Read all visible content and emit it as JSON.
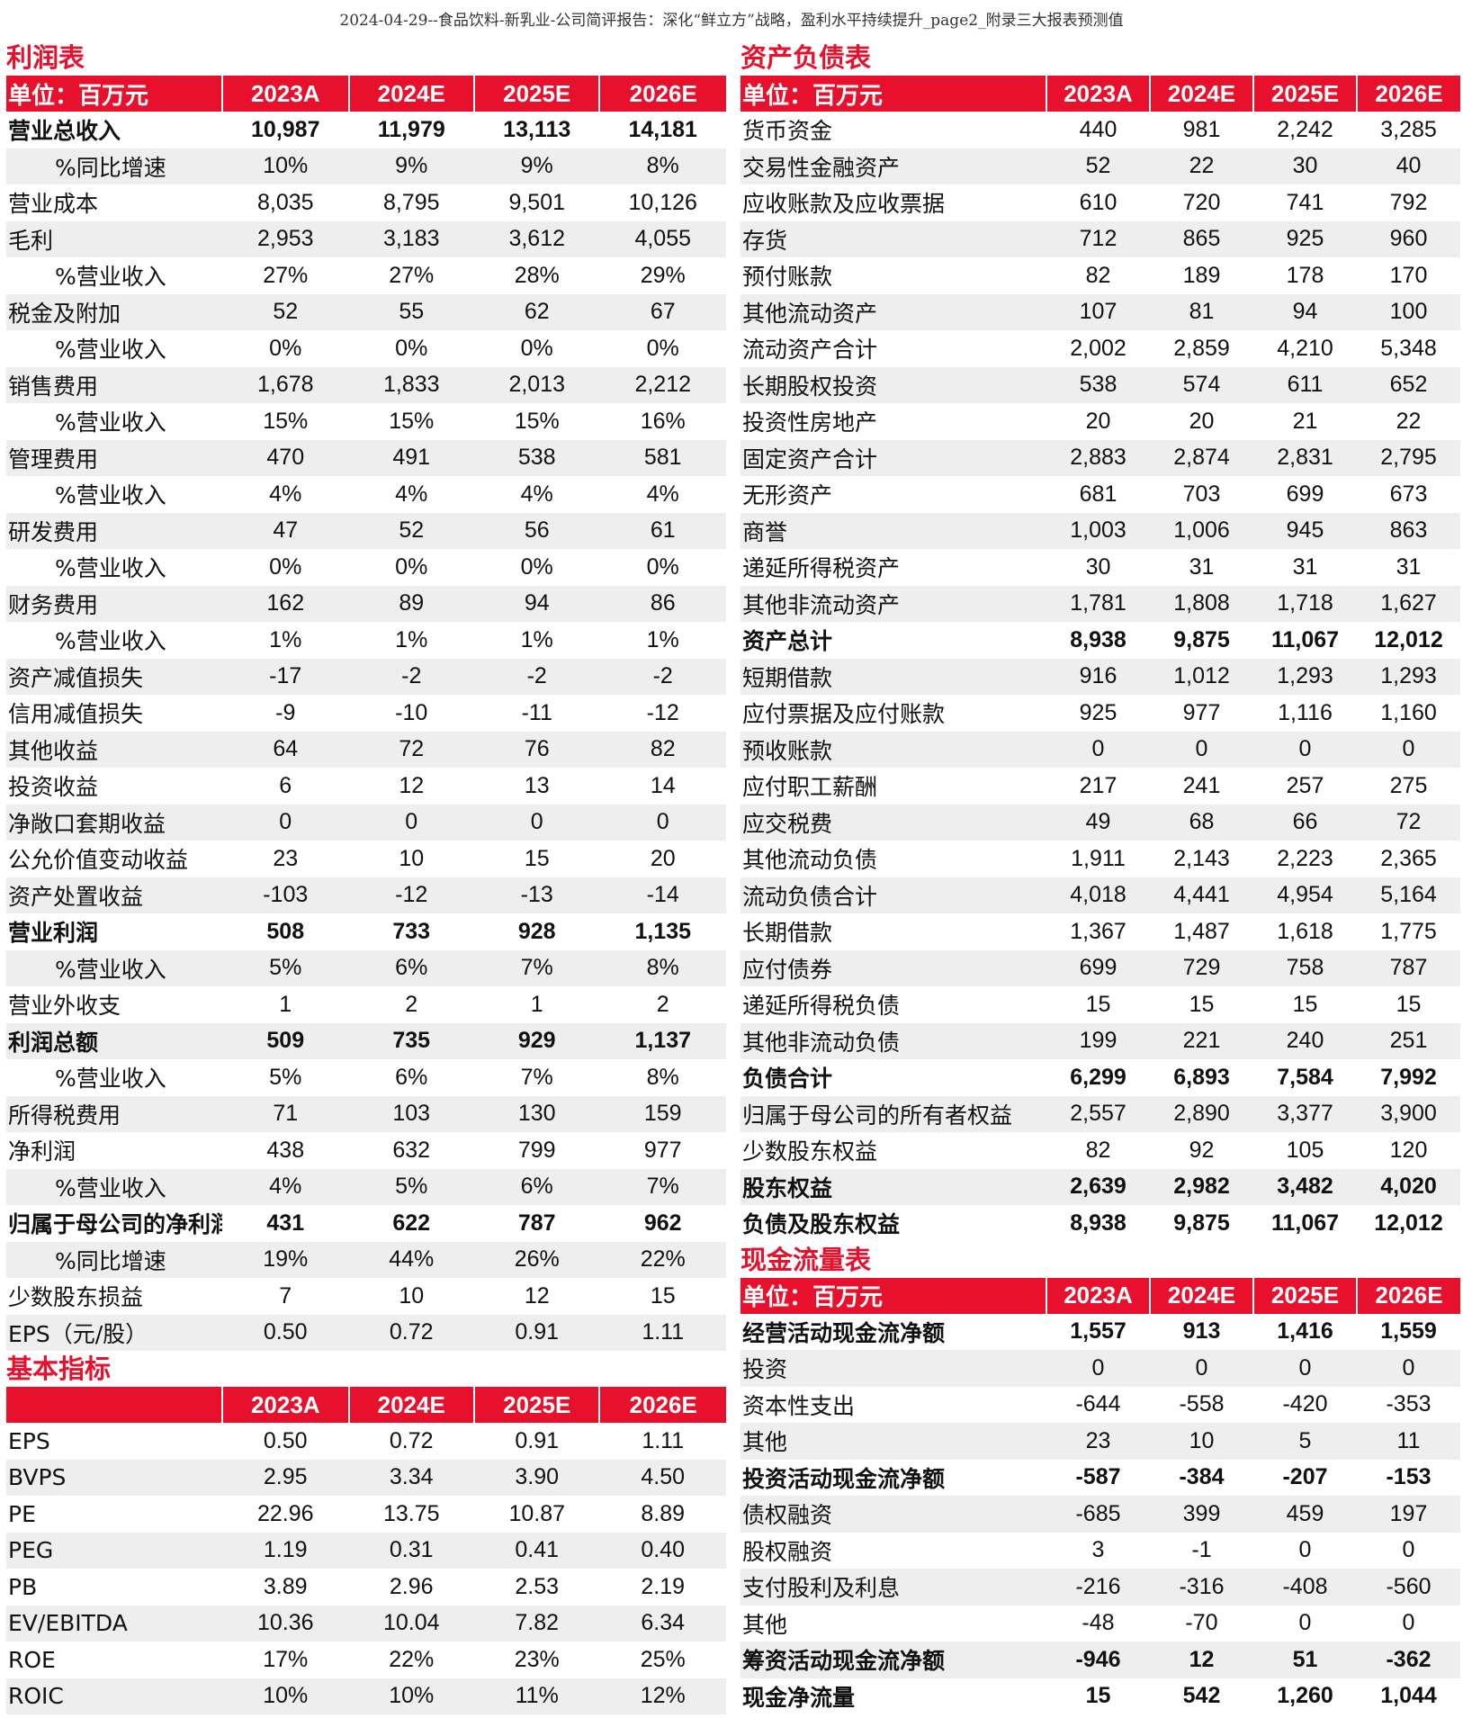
{
  "doc_title": "2024-04-29--食品饮料-新乳业-公司简评报告：深化“鲜立方”战略，盈利水平持续提升_page2_附录三大报表预测值",
  "years": [
    "2023A",
    "2024E",
    "2025E",
    "2026E"
  ],
  "income": {
    "title": "利润表",
    "unit": "单位：百万元",
    "rows": [
      {
        "label": "营业总收入",
        "values": [
          "10,987",
          "11,979",
          "13,113",
          "14,181"
        ],
        "bold": true
      },
      {
        "label": "%同比增速",
        "values": [
          "10%",
          "9%",
          "9%",
          "8%"
        ],
        "indent": true
      },
      {
        "label": "营业成本",
        "values": [
          "8,035",
          "8,795",
          "9,501",
          "10,126"
        ]
      },
      {
        "label": "毛利",
        "values": [
          "2,953",
          "3,183",
          "3,612",
          "4,055"
        ]
      },
      {
        "label": "%营业收入",
        "values": [
          "27%",
          "27%",
          "28%",
          "29%"
        ],
        "indent": true
      },
      {
        "label": "税金及附加",
        "values": [
          "52",
          "55",
          "62",
          "67"
        ]
      },
      {
        "label": "%营业收入",
        "values": [
          "0%",
          "0%",
          "0%",
          "0%"
        ],
        "indent": true
      },
      {
        "label": "销售费用",
        "values": [
          "1,678",
          "1,833",
          "2,013",
          "2,212"
        ]
      },
      {
        "label": "%营业收入",
        "values": [
          "15%",
          "15%",
          "15%",
          "16%"
        ],
        "indent": true
      },
      {
        "label": "管理费用",
        "values": [
          "470",
          "491",
          "538",
          "581"
        ]
      },
      {
        "label": "%营业收入",
        "values": [
          "4%",
          "4%",
          "4%",
          "4%"
        ],
        "indent": true
      },
      {
        "label": "研发费用",
        "values": [
          "47",
          "52",
          "56",
          "61"
        ]
      },
      {
        "label": "%营业收入",
        "values": [
          "0%",
          "0%",
          "0%",
          "0%"
        ],
        "indent": true
      },
      {
        "label": "财务费用",
        "values": [
          "162",
          "89",
          "94",
          "86"
        ]
      },
      {
        "label": "%营业收入",
        "values": [
          "1%",
          "1%",
          "1%",
          "1%"
        ],
        "indent": true
      },
      {
        "label": "资产减值损失",
        "values": [
          "-17",
          "-2",
          "-2",
          "-2"
        ]
      },
      {
        "label": "信用减值损失",
        "values": [
          "-9",
          "-10",
          "-11",
          "-12"
        ]
      },
      {
        "label": "其他收益",
        "values": [
          "64",
          "72",
          "76",
          "82"
        ]
      },
      {
        "label": "投资收益",
        "values": [
          "6",
          "12",
          "13",
          "14"
        ]
      },
      {
        "label": "净敞口套期收益",
        "values": [
          "0",
          "0",
          "0",
          "0"
        ]
      },
      {
        "label": "公允价值变动收益",
        "values": [
          "23",
          "10",
          "15",
          "20"
        ]
      },
      {
        "label": "资产处置收益",
        "values": [
          "-103",
          "-12",
          "-13",
          "-14"
        ]
      },
      {
        "label": "营业利润",
        "values": [
          "508",
          "733",
          "928",
          "1,135"
        ],
        "bold": true
      },
      {
        "label": "%营业收入",
        "values": [
          "5%",
          "6%",
          "7%",
          "8%"
        ],
        "indent": true
      },
      {
        "label": "营业外收支",
        "values": [
          "1",
          "2",
          "1",
          "2"
        ]
      },
      {
        "label": "利润总额",
        "values": [
          "509",
          "735",
          "929",
          "1,137"
        ],
        "bold": true
      },
      {
        "label": "%营业收入",
        "values": [
          "5%",
          "6%",
          "7%",
          "8%"
        ],
        "indent": true
      },
      {
        "label": "所得税费用",
        "values": [
          "71",
          "103",
          "130",
          "159"
        ]
      },
      {
        "label": "净利润",
        "values": [
          "438",
          "632",
          "799",
          "977"
        ]
      },
      {
        "label": "%营业收入",
        "values": [
          "4%",
          "5%",
          "6%",
          "7%"
        ],
        "indent": true
      },
      {
        "label": "归属于母公司的净利润",
        "values": [
          "431",
          "622",
          "787",
          "962"
        ],
        "bold": true
      },
      {
        "label": "%同比增速",
        "values": [
          "19%",
          "44%",
          "26%",
          "22%"
        ],
        "indent": true
      },
      {
        "label": "少数股东损益",
        "values": [
          "7",
          "10",
          "12",
          "15"
        ]
      },
      {
        "label": "EPS（元/股）",
        "values": [
          "0.50",
          "0.72",
          "0.91",
          "1.11"
        ]
      }
    ]
  },
  "indicators": {
    "title": "基本指标",
    "unit": "",
    "rows": [
      {
        "label": "EPS",
        "values": [
          "0.50",
          "0.72",
          "0.91",
          "1.11"
        ]
      },
      {
        "label": "BVPS",
        "values": [
          "2.95",
          "3.34",
          "3.90",
          "4.50"
        ]
      },
      {
        "label": "PE",
        "values": [
          "22.96",
          "13.75",
          "10.87",
          "8.89"
        ]
      },
      {
        "label": "PEG",
        "values": [
          "1.19",
          "0.31",
          "0.41",
          "0.40"
        ]
      },
      {
        "label": "PB",
        "values": [
          "3.89",
          "2.96",
          "2.53",
          "2.19"
        ]
      },
      {
        "label": "EV/EBITDA",
        "values": [
          "10.36",
          "10.04",
          "7.82",
          "6.34"
        ]
      },
      {
        "label": "ROE",
        "values": [
          "17%",
          "22%",
          "23%",
          "25%"
        ]
      },
      {
        "label": "ROIC",
        "values": [
          "10%",
          "10%",
          "11%",
          "12%"
        ]
      }
    ]
  },
  "balance": {
    "title": "资产负债表",
    "unit": "单位：百万元",
    "rows": [
      {
        "label": "货币资金",
        "values": [
          "440",
          "981",
          "2,242",
          "3,285"
        ]
      },
      {
        "label": "交易性金融资产",
        "values": [
          "52",
          "22",
          "30",
          "40"
        ]
      },
      {
        "label": "应收账款及应收票据",
        "values": [
          "610",
          "720",
          "741",
          "792"
        ]
      },
      {
        "label": "存货",
        "values": [
          "712",
          "865",
          "925",
          "960"
        ]
      },
      {
        "label": "预付账款",
        "values": [
          "82",
          "189",
          "178",
          "170"
        ]
      },
      {
        "label": "其他流动资产",
        "values": [
          "107",
          "81",
          "94",
          "100"
        ]
      },
      {
        "label": "流动资产合计",
        "values": [
          "2,002",
          "2,859",
          "4,210",
          "5,348"
        ]
      },
      {
        "label": "长期股权投资",
        "values": [
          "538",
          "574",
          "611",
          "652"
        ]
      },
      {
        "label": "投资性房地产",
        "values": [
          "20",
          "20",
          "21",
          "22"
        ]
      },
      {
        "label": "固定资产合计",
        "values": [
          "2,883",
          "2,874",
          "2,831",
          "2,795"
        ]
      },
      {
        "label": "无形资产",
        "values": [
          "681",
          "703",
          "699",
          "673"
        ]
      },
      {
        "label": "商誉",
        "values": [
          "1,003",
          "1,006",
          "945",
          "863"
        ]
      },
      {
        "label": "递延所得税资产",
        "values": [
          "30",
          "31",
          "31",
          "31"
        ]
      },
      {
        "label": "其他非流动资产",
        "values": [
          "1,781",
          "1,808",
          "1,718",
          "1,627"
        ]
      },
      {
        "label": "资产总计",
        "values": [
          "8,938",
          "9,875",
          "11,067",
          "12,012"
        ],
        "bold": true
      },
      {
        "label": "短期借款",
        "values": [
          "916",
          "1,012",
          "1,293",
          "1,293"
        ]
      },
      {
        "label": "应付票据及应付账款",
        "values": [
          "925",
          "977",
          "1,116",
          "1,160"
        ]
      },
      {
        "label": "预收账款",
        "values": [
          "0",
          "0",
          "0",
          "0"
        ]
      },
      {
        "label": "应付职工薪酬",
        "values": [
          "217",
          "241",
          "257",
          "275"
        ]
      },
      {
        "label": "应交税费",
        "values": [
          "49",
          "68",
          "66",
          "72"
        ]
      },
      {
        "label": "其他流动负债",
        "values": [
          "1,911",
          "2,143",
          "2,223",
          "2,365"
        ]
      },
      {
        "label": "流动负债合计",
        "values": [
          "4,018",
          "4,441",
          "4,954",
          "5,164"
        ]
      },
      {
        "label": "长期借款",
        "values": [
          "1,367",
          "1,487",
          "1,618",
          "1,775"
        ]
      },
      {
        "label": "应付债券",
        "values": [
          "699",
          "729",
          "758",
          "787"
        ]
      },
      {
        "label": "递延所得税负债",
        "values": [
          "15",
          "15",
          "15",
          "15"
        ]
      },
      {
        "label": "其他非流动负债",
        "values": [
          "199",
          "221",
          "240",
          "251"
        ]
      },
      {
        "label": "负债合计",
        "values": [
          "6,299",
          "6,893",
          "7,584",
          "7,992"
        ],
        "bold": true
      },
      {
        "label": "归属于母公司的所有者权益",
        "values": [
          "2,557",
          "2,890",
          "3,377",
          "3,900"
        ]
      },
      {
        "label": "少数股东权益",
        "values": [
          "82",
          "92",
          "105",
          "120"
        ]
      },
      {
        "label": "股东权益",
        "values": [
          "2,639",
          "2,982",
          "3,482",
          "4,020"
        ],
        "bold": true
      },
      {
        "label": "负债及股东权益",
        "values": [
          "8,938",
          "9,875",
          "11,067",
          "12,012"
        ],
        "bold": true
      }
    ]
  },
  "cashflow": {
    "title": "现金流量表",
    "unit": "单位：百万元",
    "rows": [
      {
        "label": "经营活动现金流净额",
        "values": [
          "1,557",
          "913",
          "1,416",
          "1,559"
        ],
        "bold": true
      },
      {
        "label": "投资",
        "values": [
          "0",
          "0",
          "0",
          "0"
        ]
      },
      {
        "label": "资本性支出",
        "values": [
          "-644",
          "-558",
          "-420",
          "-353"
        ]
      },
      {
        "label": "其他",
        "values": [
          "23",
          "10",
          "5",
          "11"
        ]
      },
      {
        "label": "投资活动现金流净额",
        "values": [
          "-587",
          "-384",
          "-207",
          "-153"
        ],
        "bold": true
      },
      {
        "label": "债权融资",
        "values": [
          "-685",
          "399",
          "459",
          "197"
        ]
      },
      {
        "label": "股权融资",
        "values": [
          "3",
          "-1",
          "0",
          "0"
        ]
      },
      {
        "label": "支付股利及利息",
        "values": [
          "-216",
          "-316",
          "-408",
          "-560"
        ]
      },
      {
        "label": "其他",
        "values": [
          "-48",
          "-70",
          "0",
          "0"
        ]
      },
      {
        "label": "筹资活动现金流净额",
        "values": [
          "-946",
          "12",
          "51",
          "-362"
        ],
        "bold": true
      },
      {
        "label": "现金净流量",
        "values": [
          "15",
          "542",
          "1,260",
          "1,044"
        ],
        "bold": true
      }
    ]
  }
}
